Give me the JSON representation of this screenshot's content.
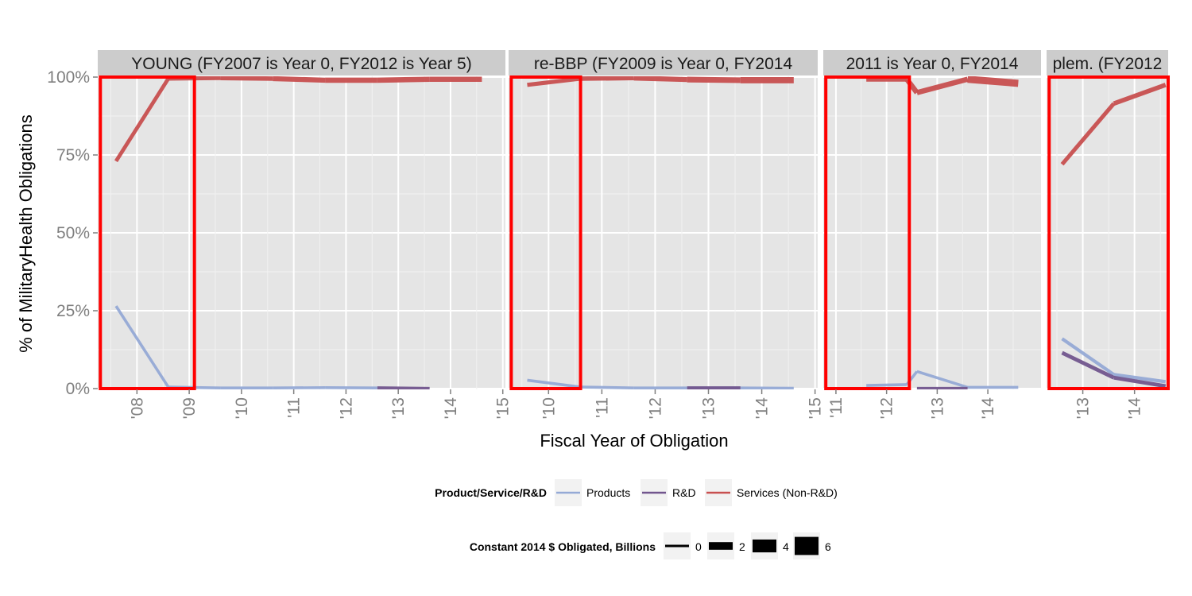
{
  "chart_data": {
    "type": "line",
    "xlabel": "Fiscal Year of Obligation",
    "ylabel": "% of  MilitaryHealth  Obligations",
    "ylim": [
      0,
      1
    ],
    "y_ticks": [
      0,
      0.25,
      0.5,
      0.75,
      1.0
    ],
    "y_tick_labels": [
      "0%",
      "25%",
      "50%",
      "75%",
      "100%"
    ],
    "grid": true,
    "legend_placement": "bottom",
    "colors": {
      "Products": "#95aad6",
      "R&D": "#72568e",
      "Services (Non-R&D)": "#c85050",
      "highlight": "#ff0000",
      "panel_bg": "#e5e5e5",
      "strip_bg": "#cccccc"
    },
    "panels": [
      {
        "strip": "YOUNG (FY2007 is Year 0, FY2012 is Year 5)",
        "xlim": [
          2007.25,
          2015.05
        ],
        "x_ticks": [
          2008,
          2009,
          2010,
          2011,
          2012,
          2013,
          2014,
          2015
        ],
        "x_tick_labels": [
          "'08",
          "'09",
          "'10",
          "'11",
          "'12",
          "'13",
          "'14",
          "'15"
        ],
        "highlight": [
          2007.3,
          2009.1
        ],
        "series": [
          {
            "name": "Services (Non-R&D)",
            "points": [
              [
                2007.6,
                0.73,
                1.5
              ],
              [
                2008.6,
                0.995,
                1.5
              ],
              [
                2009.6,
                0.997,
                2
              ],
              [
                2010.6,
                0.995,
                2.5
              ],
              [
                2011.6,
                0.99,
                3
              ],
              [
                2012.6,
                0.99,
                3
              ],
              [
                2013.6,
                0.993,
                3
              ],
              [
                2014.6,
                0.993,
                3
              ]
            ]
          },
          {
            "name": "Products",
            "points": [
              [
                2007.6,
                0.265,
                0.5
              ],
              [
                2008.6,
                0.005,
                0.5
              ],
              [
                2009.6,
                0.002,
                0.5
              ],
              [
                2010.6,
                0.002,
                0.5
              ],
              [
                2011.6,
                0.003,
                0.5
              ],
              [
                2012.6,
                0.002,
                0.5
              ]
            ]
          },
          {
            "name": "R&D",
            "points": [
              [
                2012.6,
                0.002,
                1
              ],
              [
                2013.6,
                0.0,
                1
              ]
            ]
          }
        ]
      },
      {
        "strip": "re-BBP (FY2009 is Year 0, FY2014",
        "xlim": [
          2009.25,
          2015.05
        ],
        "x_ticks": [
          2010,
          2011,
          2012,
          2013,
          2014,
          2015
        ],
        "x_tick_labels": [
          "'10",
          "'11",
          "'12",
          "'13",
          "'14",
          "'15"
        ],
        "highlight": [
          2009.3,
          2010.6
        ],
        "series": [
          {
            "name": "Services (Non-R&D)",
            "points": [
              [
                2009.6,
                0.975,
                1.5
              ],
              [
                2010.6,
                0.995,
                2
              ],
              [
                2011.6,
                0.997,
                2.5
              ],
              [
                2012.6,
                0.992,
                3
              ],
              [
                2013.6,
                0.99,
                4
              ],
              [
                2014.6,
                0.99,
                4
              ]
            ]
          },
          {
            "name": "Products",
            "points": [
              [
                2009.6,
                0.027,
                0.5
              ],
              [
                2010.6,
                0.005,
                0.5
              ],
              [
                2011.6,
                0.002,
                0.5
              ],
              [
                2012.6,
                0.002,
                0.5
              ],
              [
                2013.6,
                0.002,
                0.5
              ],
              [
                2014.6,
                0.001,
                0.5
              ]
            ]
          },
          {
            "name": "R&D",
            "points": [
              [
                2012.6,
                0.002,
                1
              ],
              [
                2013.6,
                0.002,
                1
              ]
            ]
          }
        ]
      },
      {
        "strip": "2011 is Year 0, FY2014",
        "xlim": [
          2010.75,
          2015.05
        ],
        "x_ticks": [
          2011,
          2012,
          2013,
          2014
        ],
        "x_tick_labels": [
          "'11",
          "'12",
          "'13",
          "'14"
        ],
        "highlight": [
          2010.8,
          2012.45
        ],
        "series": [
          {
            "name": "Services (Non-R&D)",
            "points": [
              [
                2011.6,
                0.993,
                2
              ],
              [
                2012.4,
                0.993,
                3
              ],
              [
                2012.6,
                0.95,
                3
              ],
              [
                2013.6,
                0.993,
                3
              ],
              [
                2014.6,
                0.98,
                7
              ]
            ]
          },
          {
            "name": "Products",
            "points": [
              [
                2011.6,
                0.01,
                0.5
              ],
              [
                2012.4,
                0.013,
                0.5
              ],
              [
                2012.6,
                0.055,
                0.5
              ],
              [
                2013.6,
                0.004,
                0.5
              ],
              [
                2014.6,
                0.004,
                0.5
              ]
            ]
          },
          {
            "name": "R&D",
            "points": [
              [
                2012.6,
                0.0,
                1
              ],
              [
                2013.6,
                0.0,
                1
              ]
            ]
          }
        ]
      },
      {
        "strip": "plem. (FY2012",
        "xlim": [
          2012.3,
          2014.65
        ],
        "x_ticks": [
          2013,
          2014
        ],
        "x_tick_labels": [
          "'13",
          "'14"
        ],
        "highlight": [
          2012.35,
          2014.65
        ],
        "series": [
          {
            "name": "Services (Non-R&D)",
            "points": [
              [
                2012.6,
                0.72,
                1.5
              ],
              [
                2013.6,
                0.915,
                2
              ],
              [
                2014.6,
                0.975,
                2.5
              ]
            ]
          },
          {
            "name": "Products",
            "points": [
              [
                2012.6,
                0.16,
                1
              ],
              [
                2013.6,
                0.045,
                1
              ],
              [
                2014.6,
                0.022,
                1
              ]
            ]
          },
          {
            "name": "R&D",
            "points": [
              [
                2012.6,
                0.115,
                1.5
              ],
              [
                2013.6,
                0.035,
                1.5
              ],
              [
                2014.6,
                0.008,
                1.5
              ]
            ]
          }
        ]
      }
    ],
    "legend_color": {
      "title": "Product/Service/R&D",
      "items": [
        "Products",
        "R&D",
        "Services (Non-R&D)"
      ]
    },
    "legend_size": {
      "title": "Constant 2014 $ Obligated, Billions",
      "items": [
        0,
        2,
        4,
        6
      ],
      "labels": [
        "0",
        "2",
        "4",
        "6"
      ]
    }
  }
}
